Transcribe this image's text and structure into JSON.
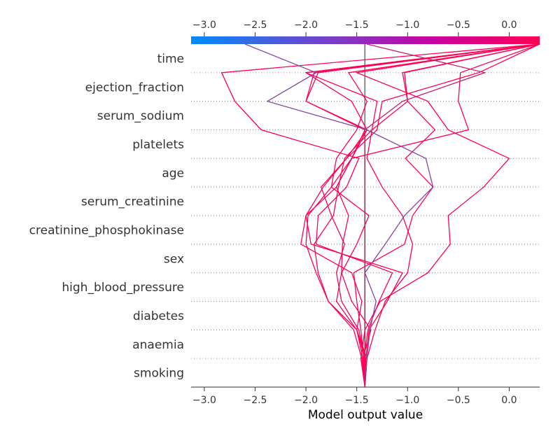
{
  "chart_data": {
    "type": "line",
    "title": "",
    "xlabel": "Model output value",
    "ylabel": "",
    "xlim": [
      -3.13,
      0.3
    ],
    "x_ticks": [
      "−3.0",
      "−2.5",
      "−2.0",
      "−1.5",
      "−1.0",
      "−0.5",
      "0.0"
    ],
    "x_tick_values": [
      -3.0,
      -2.5,
      -2.0,
      -1.5,
      -1.0,
      -0.5,
      0.0
    ],
    "base_value": -1.42,
    "colormap": [
      "#008bfb",
      "#ff0052"
    ],
    "grid": "dotted-horizontal",
    "features": [
      "time",
      "ejection_fraction",
      "serum_sodium",
      "platelets",
      "age",
      "serum_creatinine",
      "creatinine_phosphokinase",
      "sex",
      "high_blood_pressure",
      "diabetes",
      "anaemia",
      "smoking"
    ],
    "series": [
      {
        "values": [
          -1.42,
          -1.42,
          -1.48,
          -1.65,
          -1.7,
          -1.62,
          -1.75,
          -1.85,
          -1.6,
          -1.3,
          -1.25,
          -0.3,
          0.3
        ]
      },
      {
        "values": [
          -1.42,
          -1.44,
          -1.36,
          -1.55,
          -1.65,
          -1.64,
          -1.58,
          -1.7,
          -1.55,
          -1.4,
          -2.0,
          -1.92,
          0.3
        ]
      },
      {
        "values": [
          -1.42,
          -1.45,
          -1.53,
          -1.78,
          -1.88,
          -1.92,
          -1.73,
          -1.68,
          -1.62,
          -1.35,
          -1.3,
          -2.0,
          0.3
        ]
      },
      {
        "values": [
          -1.42,
          -1.4,
          -1.32,
          -1.22,
          -1.0,
          -0.95,
          -1.05,
          -1.25,
          -1.4,
          -1.35,
          -1.0,
          -1.05,
          0.3
        ]
      },
      {
        "values": [
          -1.42,
          -1.46,
          -1.42,
          -1.27,
          -0.8,
          -0.58,
          -0.6,
          -0.25,
          0.0,
          -0.6,
          -0.8,
          -1.5,
          0.3
        ]
      },
      {
        "values": [
          -1.42,
          -1.43,
          -1.39,
          -1.28,
          -1.15,
          -1.9,
          -1.88,
          -1.6,
          -1.48,
          -2.44,
          -2.7,
          -2.83,
          0.3
        ]
      },
      {
        "values": [
          -1.42,
          -1.42,
          -1.5,
          -1.45,
          -1.55,
          -2.05,
          -2.0,
          -1.83,
          -1.6,
          -1.4,
          -1.55,
          -2.0,
          0.3
        ]
      },
      {
        "values": [
          -1.42,
          -1.44,
          -1.5,
          -1.78,
          -1.9,
          -2.0,
          -1.98,
          -1.75,
          -1.55,
          -1.42,
          -2.0,
          -1.88,
          0.3
        ]
      },
      {
        "values": [
          -1.42,
          -1.4,
          -1.5,
          -1.7,
          -1.65,
          -1.5,
          -1.38,
          -1.75,
          -1.7,
          -1.5,
          -1.4,
          -1.58,
          0.3
        ]
      },
      {
        "values": [
          -1.42,
          -1.41,
          -1.38,
          -1.2,
          -1.05,
          -1.95,
          -2.0,
          -1.7,
          -1.55,
          -0.4,
          -0.5,
          -0.48,
          0.3
        ]
      },
      {
        "values": [
          -1.42,
          -1.43,
          -1.46,
          -1.5,
          -1.53,
          -1.03,
          -0.95,
          -0.75,
          -1.02,
          -0.73,
          -1.0,
          -1.03,
          0.3
        ]
      },
      {
        "values": [
          -1.42,
          -1.4,
          -1.37,
          -1.31,
          -1.42,
          -1.22,
          -1.03,
          -0.75,
          -0.82,
          -1.4,
          -2.38,
          -1.9,
          -2.6
        ]
      },
      {
        "values": [
          -1.42,
          -1.42,
          -1.42,
          -1.42,
          -1.42,
          -1.42,
          -1.42,
          -1.42,
          -1.42,
          -1.42,
          -1.05,
          -0.24,
          -1.4
        ]
      }
    ]
  }
}
